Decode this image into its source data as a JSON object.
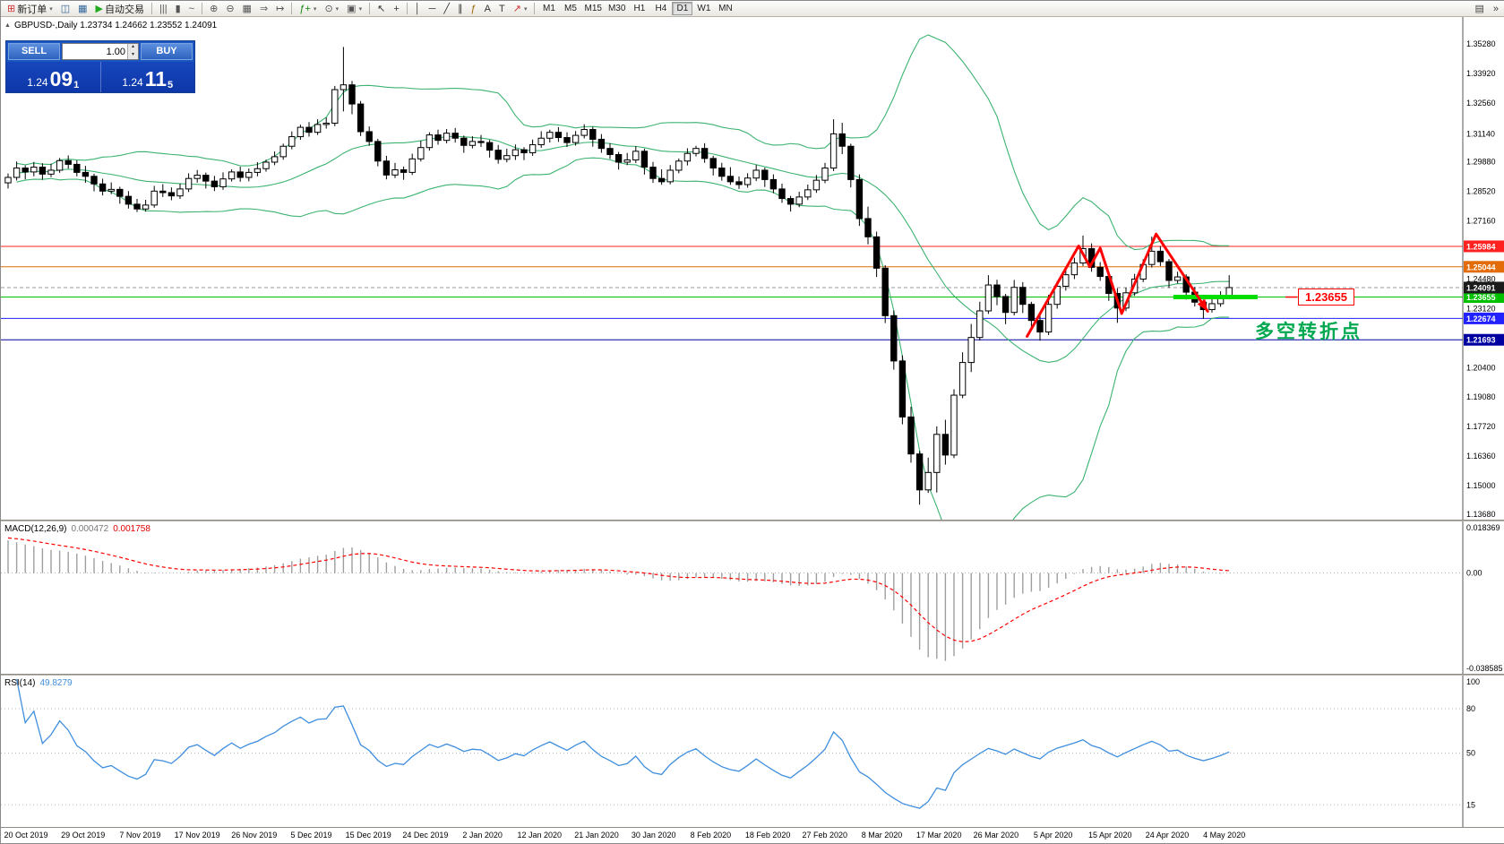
{
  "toolbar": {
    "items": [
      {
        "name": "new-order",
        "glyph": "⊞",
        "glyph_color": "#cc3333",
        "label": "新订单",
        "caret": true
      },
      {
        "name": "charts-toolbar",
        "glyph": "◫",
        "glyph_color": "#336699"
      },
      {
        "name": "profiles",
        "glyph": "▦",
        "glyph_color": "#336699"
      },
      {
        "name": "autotrading",
        "glyph": "▶",
        "glyph_color": "#22aa22",
        "label": "自动交易"
      },
      {
        "sep": true
      },
      {
        "name": "bar-chart-mode",
        "glyph": "|||",
        "glyph_color": "#555555"
      },
      {
        "name": "candlestick-mode",
        "glyph": "▮",
        "glyph_color": "#555555"
      },
      {
        "name": "line-chart-mode",
        "glyph": "~",
        "glyph_color": "#555555"
      },
      {
        "sep": true
      },
      {
        "name": "zoom-in",
        "glyph": "⊕",
        "glyph_color": "#555555"
      },
      {
        "name": "zoom-out",
        "glyph": "⊖",
        "glyph_color": "#555555"
      },
      {
        "name": "tile-windows",
        "glyph": "▦",
        "glyph_color": "#555555"
      },
      {
        "name": "auto-scroll",
        "glyph": "⇒",
        "glyph_color": "#555555"
      },
      {
        "name": "chart-shift",
        "glyph": "↦",
        "glyph_color": "#555555"
      },
      {
        "sep": true
      },
      {
        "name": "indicators",
        "glyph": "ƒ+",
        "glyph_color": "#118811",
        "caret": true
      },
      {
        "name": "periods",
        "glyph": "⊙",
        "glyph_color": "#555555",
        "caret": true
      },
      {
        "name": "templates",
        "glyph": "▣",
        "glyph_color": "#555555",
        "caret": true
      },
      {
        "sep": true
      },
      {
        "name": "cursor",
        "glyph": "↖",
        "glyph_color": "#333333"
      },
      {
        "name": "crosshair",
        "glyph": "+",
        "glyph_color": "#333333"
      },
      {
        "sep": true
      },
      {
        "name": "vertical-line",
        "glyph": "│",
        "glyph_color": "#333333"
      },
      {
        "name": "horizontal-line",
        "glyph": "─",
        "glyph_color": "#333333"
      },
      {
        "name": "trendline",
        "glyph": "╱",
        "glyph_color": "#333333"
      },
      {
        "name": "equidistant-channel",
        "glyph": "∥",
        "glyph_color": "#333333"
      },
      {
        "name": "fibonacci-retracement",
        "glyph": "ƒ",
        "glyph_color": "#996600"
      },
      {
        "name": "text",
        "glyph": "A",
        "glyph_color": "#333333"
      },
      {
        "name": "text-label",
        "glyph": "T",
        "glyph_color": "#333333"
      },
      {
        "name": "arrows",
        "glyph": "↗",
        "glyph_color": "#cc3333",
        "caret": true
      },
      {
        "sep": true
      }
    ],
    "timeframes": [
      "M1",
      "M5",
      "M15",
      "M30",
      "H1",
      "H4",
      "D1",
      "W1",
      "MN"
    ],
    "active_timeframe": "D1",
    "right_items": [
      {
        "name": "window-list",
        "glyph": "▤"
      },
      {
        "name": "toolbar-options",
        "glyph": "»"
      }
    ]
  },
  "chart": {
    "collapse_arrow": "▲",
    "symbol_title": "GBPUSD-,Daily 1.23734 1.24662 1.23552 1.24091"
  },
  "one_click": {
    "sell_label": "SELL",
    "buy_label": "BUY",
    "volume": "1.00",
    "sell_small": "1.24",
    "sell_big": "09",
    "sell_sup": "1",
    "buy_small": "1.24",
    "buy_big": "11",
    "buy_sup": "5"
  },
  "chart_data": {
    "type": "candlestick",
    "symbol": "GBPUSD-",
    "period": "Daily",
    "y_axis": {
      "price_at_top": 1.3528,
      "price_at_bottom": 1.1368,
      "labels": [
        "1.35280",
        "1.33920",
        "1.32560",
        "1.31140",
        "1.29880",
        "1.28520",
        "1.27160",
        "1.24480",
        "1.23120",
        "1.20400",
        "1.19080",
        "1.17720",
        "1.16360",
        "1.15000",
        "1.13680"
      ]
    },
    "x_axis": {
      "labels": [
        "20 Oct 2019",
        "29 Oct 2019",
        "7 Nov 2019",
        "17 Nov 2019",
        "26 Nov 2019",
        "5 Dec 2019",
        "15 Dec 2019",
        "24 Dec 2019",
        "2 Jan 2020",
        "12 Jan 2020",
        "21 Jan 2020",
        "30 Jan 2020",
        "8 Feb 2020",
        "18 Feb 2020",
        "27 Feb 2020",
        "8 Mar 2020",
        "17 Mar 2020",
        "26 Mar 2020",
        "5 Apr 2020",
        "15 Apr 2020",
        "24 Apr 2020",
        "4 May 2020"
      ]
    },
    "ohlc": [
      [
        1.289,
        1.2933,
        1.2864,
        1.2915
      ],
      [
        1.2915,
        1.2988,
        1.2901,
        1.2958
      ],
      [
        1.2958,
        1.297,
        1.2906,
        1.294
      ],
      [
        1.294,
        1.2986,
        1.292,
        1.2962
      ],
      [
        1.2962,
        1.298,
        1.2904,
        1.293
      ],
      [
        1.293,
        1.2978,
        1.2916,
        1.2948
      ],
      [
        1.2948,
        1.3004,
        1.2936,
        1.2992
      ],
      [
        1.2992,
        1.3016,
        1.2955,
        1.2975
      ],
      [
        1.2975,
        1.2993,
        1.292,
        1.2938
      ],
      [
        1.2938,
        1.2968,
        1.289,
        1.292
      ],
      [
        1.292,
        1.2932,
        1.2851,
        1.2885
      ],
      [
        1.2885,
        1.2909,
        1.2832,
        1.2852
      ],
      [
        1.2852,
        1.2892,
        1.2838,
        1.286
      ],
      [
        1.286,
        1.2872,
        1.2794,
        1.2828
      ],
      [
        1.2828,
        1.2852,
        1.2772,
        1.2792
      ],
      [
        1.2792,
        1.2816,
        1.2756,
        1.277
      ],
      [
        1.277,
        1.2812,
        1.2758,
        1.2788
      ],
      [
        1.2788,
        1.2876,
        1.2776,
        1.2852
      ],
      [
        1.2852,
        1.2884,
        1.2825,
        1.2845
      ],
      [
        1.2845,
        1.2869,
        1.281,
        1.283
      ],
      [
        1.283,
        1.2886,
        1.2816,
        1.2862
      ],
      [
        1.2862,
        1.2934,
        1.2848,
        1.291
      ],
      [
        1.291,
        1.2949,
        1.2891,
        1.2925
      ],
      [
        1.2925,
        1.2937,
        1.2864,
        1.2898
      ],
      [
        1.2898,
        1.2922,
        1.2852,
        1.2872
      ],
      [
        1.2872,
        1.2938,
        1.2858,
        1.2908
      ],
      [
        1.2908,
        1.2952,
        1.2896,
        1.294
      ],
      [
        1.294,
        1.2964,
        1.2895,
        1.2915
      ],
      [
        1.2915,
        1.2956,
        1.2897,
        1.2938
      ],
      [
        1.2938,
        1.2985,
        1.292,
        1.2955
      ],
      [
        1.2955,
        1.2997,
        1.2941,
        1.2985
      ],
      [
        1.2985,
        1.3034,
        1.2971,
        1.301
      ],
      [
        1.301,
        1.307,
        1.2996,
        1.3058
      ],
      [
        1.3058,
        1.3126,
        1.3044,
        1.3102
      ],
      [
        1.3102,
        1.3157,
        1.3088,
        1.3145
      ],
      [
        1.3145,
        1.3169,
        1.3102,
        1.3122
      ],
      [
        1.3122,
        1.3182,
        1.311,
        1.3158
      ],
      [
        1.3158,
        1.319,
        1.3139,
        1.3164
      ],
      [
        1.3164,
        1.3335,
        1.315,
        1.3318
      ],
      [
        1.3318,
        1.3514,
        1.3218,
        1.334
      ],
      [
        1.334,
        1.3358,
        1.3205,
        1.3252
      ],
      [
        1.3252,
        1.3266,
        1.3105,
        1.3125
      ],
      [
        1.3125,
        1.3149,
        1.306,
        1.308
      ],
      [
        1.308,
        1.3092,
        1.2966,
        1.299
      ],
      [
        1.299,
        1.3014,
        1.2906,
        1.2926
      ],
      [
        1.2926,
        1.2982,
        1.2912,
        1.295
      ],
      [
        1.295,
        1.2965,
        1.2904,
        1.2938
      ],
      [
        1.2938,
        1.3024,
        1.2926,
        1.3
      ],
      [
        1.3,
        1.3084,
        1.2988,
        1.3052
      ],
      [
        1.3052,
        1.3122,
        1.3038,
        1.311
      ],
      [
        1.311,
        1.3134,
        1.3065,
        1.3085
      ],
      [
        1.3085,
        1.3137,
        1.3071,
        1.3118
      ],
      [
        1.3118,
        1.3142,
        1.3075,
        1.3095
      ],
      [
        1.3095,
        1.3107,
        1.3028,
        1.3062
      ],
      [
        1.3062,
        1.3104,
        1.3048,
        1.308
      ],
      [
        1.308,
        1.311,
        1.3055,
        1.3075
      ],
      [
        1.3075,
        1.3087,
        1.3006,
        1.304
      ],
      [
        1.304,
        1.3064,
        1.2978,
        1.2998
      ],
      [
        1.2998,
        1.3047,
        1.2984,
        1.3015
      ],
      [
        1.3015,
        1.3066,
        1.2995,
        1.3042
      ],
      [
        1.3042,
        1.3054,
        1.2994,
        1.3028
      ],
      [
        1.3028,
        1.3089,
        1.3014,
        1.3065
      ],
      [
        1.3065,
        1.3127,
        1.3051,
        1.3095
      ],
      [
        1.3095,
        1.3134,
        1.3075,
        1.3122
      ],
      [
        1.3122,
        1.3146,
        1.3078,
        1.3098
      ],
      [
        1.3098,
        1.3122,
        1.3055,
        1.3075
      ],
      [
        1.3075,
        1.3128,
        1.3061,
        1.3108
      ],
      [
        1.3108,
        1.3159,
        1.3094,
        1.3135
      ],
      [
        1.3135,
        1.3147,
        1.3056,
        1.309
      ],
      [
        1.309,
        1.3114,
        1.3028,
        1.3048
      ],
      [
        1.3048,
        1.3072,
        1.3,
        1.302
      ],
      [
        1.302,
        1.3032,
        1.2951,
        1.2985
      ],
      [
        1.2985,
        1.3027,
        1.2971,
        1.2995
      ],
      [
        1.2995,
        1.3059,
        1.2981,
        1.3035
      ],
      [
        1.3035,
        1.3047,
        1.2928,
        1.2962
      ],
      [
        1.2962,
        1.2986,
        1.289,
        1.291
      ],
      [
        1.291,
        1.2952,
        1.2881,
        1.2895
      ],
      [
        1.2895,
        1.2972,
        1.2883,
        1.2948
      ],
      [
        1.2948,
        1.3002,
        1.2934,
        1.299
      ],
      [
        1.299,
        1.3049,
        1.297,
        1.3025
      ],
      [
        1.3025,
        1.306,
        1.3011,
        1.3048
      ],
      [
        1.3048,
        1.3072,
        1.2982,
        1.3002
      ],
      [
        1.3002,
        1.3014,
        1.2924,
        1.2958
      ],
      [
        1.2958,
        1.2982,
        1.29,
        1.292
      ],
      [
        1.292,
        1.2962,
        1.2881,
        1.2895
      ],
      [
        1.2895,
        1.2919,
        1.2862,
        1.2882
      ],
      [
        1.2882,
        1.2934,
        1.2868,
        1.2912
      ],
      [
        1.2912,
        1.2972,
        1.2898,
        1.2948
      ],
      [
        1.2948,
        1.296,
        1.2871,
        1.2905
      ],
      [
        1.2905,
        1.2929,
        1.2842,
        1.2862
      ],
      [
        1.2862,
        1.2886,
        1.2798,
        1.2818
      ],
      [
        1.2818,
        1.283,
        1.2758,
        1.2792
      ],
      [
        1.2792,
        1.2849,
        1.2778,
        1.2825
      ],
      [
        1.2825,
        1.2882,
        1.2811,
        1.2858
      ],
      [
        1.2858,
        1.2926,
        1.2844,
        1.2902
      ],
      [
        1.2902,
        1.2982,
        1.2888,
        1.2958
      ],
      [
        1.2958,
        1.3182,
        1.2944,
        1.3115
      ],
      [
        1.3115,
        1.3166,
        1.3022,
        1.3058
      ],
      [
        1.3058,
        1.307,
        1.2869,
        1.2905
      ],
      [
        1.2905,
        1.2929,
        1.2692,
        1.2726
      ],
      [
        1.2726,
        1.2781,
        1.2608,
        1.2642
      ],
      [
        1.2642,
        1.2666,
        1.2458,
        1.2498
      ],
      [
        1.2498,
        1.2512,
        1.2246,
        1.228
      ],
      [
        1.228,
        1.2304,
        1.2032,
        1.2072
      ],
      [
        1.2072,
        1.2098,
        1.1781,
        1.1815
      ],
      [
        1.1815,
        1.1862,
        1.1605,
        1.1645
      ],
      [
        1.1645,
        1.1659,
        1.1412,
        1.148
      ],
      [
        1.148,
        1.1628,
        1.1466,
        1.156
      ],
      [
        1.156,
        1.1772,
        1.1468,
        1.1735
      ],
      [
        1.1735,
        1.1802,
        1.1596,
        1.164
      ],
      [
        1.164,
        1.1942,
        1.1626,
        1.1915
      ],
      [
        1.1915,
        1.2112,
        1.1901,
        1.2065
      ],
      [
        1.2065,
        1.2242,
        1.2021,
        1.218
      ],
      [
        1.218,
        1.2344,
        1.2166,
        1.2302
      ],
      [
        1.2302,
        1.2466,
        1.2288,
        1.2421
      ],
      [
        1.2421,
        1.2445,
        1.2328,
        1.2368
      ],
      [
        1.2368,
        1.238,
        1.2241,
        1.2295
      ],
      [
        1.2295,
        1.2444,
        1.2281,
        1.241
      ],
      [
        1.241,
        1.2434,
        1.2292,
        1.2332
      ],
      [
        1.2332,
        1.2344,
        1.2214,
        1.2258
      ],
      [
        1.2258,
        1.2282,
        1.2165,
        1.2205
      ],
      [
        1.2205,
        1.2376,
        1.2191,
        1.2332
      ],
      [
        1.2332,
        1.2439,
        1.2312,
        1.2415
      ],
      [
        1.2415,
        1.2492,
        1.2395,
        1.2468
      ],
      [
        1.2468,
        1.2546,
        1.2448,
        1.2522
      ],
      [
        1.2522,
        1.2648,
        1.2508,
        1.2588
      ],
      [
        1.2588,
        1.2612,
        1.2482,
        1.2502
      ],
      [
        1.2502,
        1.2526,
        1.244,
        1.246
      ],
      [
        1.246,
        1.2472,
        1.2348,
        1.2382
      ],
      [
        1.2382,
        1.2406,
        1.2247,
        1.2315
      ],
      [
        1.2315,
        1.2409,
        1.2301,
        1.2385
      ],
      [
        1.2385,
        1.2472,
        1.2371,
        1.2448
      ],
      [
        1.2448,
        1.2539,
        1.2434,
        1.2515
      ],
      [
        1.2515,
        1.2643,
        1.2501,
        1.2576
      ],
      [
        1.2576,
        1.26,
        1.2508,
        1.2528
      ],
      [
        1.2528,
        1.254,
        1.2408,
        1.2442
      ],
      [
        1.2442,
        1.2482,
        1.2428,
        1.2458
      ],
      [
        1.2458,
        1.247,
        1.2354,
        1.2388
      ],
      [
        1.2388,
        1.2412,
        1.2322,
        1.2342
      ],
      [
        1.2342,
        1.2354,
        1.2266,
        1.2308
      ],
      [
        1.2308,
        1.2359,
        1.2294,
        1.2335
      ],
      [
        1.2335,
        1.2392,
        1.2321,
        1.2368
      ],
      [
        1.2373,
        1.2466,
        1.2355,
        1.2409
      ]
    ],
    "hlines": [
      {
        "price": 1.25984,
        "label": "1.25984",
        "color": "#ff2020"
      },
      {
        "price": 1.25044,
        "label": "1.25044",
        "color": "#e36c09"
      },
      {
        "price": 1.23655,
        "label": "1.23655",
        "color": "#00c000"
      },
      {
        "price": 1.22674,
        "label": "1.22674",
        "color": "#2222ff"
      },
      {
        "price": 1.21693,
        "label": "1.21693",
        "color": "#0000a0"
      }
    ],
    "current_price": {
      "value": 1.24091,
      "label": "1.24091",
      "color": "#1a1a1a"
    },
    "bollinger": {
      "period": 20,
      "deviation": 2,
      "color": "#3cb371"
    },
    "annotations": {
      "zigzag": {
        "color": "#ff0000",
        "points": [
          [
            118.5,
            1.2185
          ],
          [
            124.5,
            1.26
          ],
          [
            125.8,
            1.2505
          ],
          [
            127.0,
            1.259
          ],
          [
            129.5,
            1.229
          ],
          [
            133.5,
            1.2655
          ],
          [
            139.5,
            1.23
          ]
        ]
      },
      "support_segment": {
        "from": 135.5,
        "to": 145.3,
        "price": 1.23655,
        "color": "#00dd00"
      },
      "price_tag": {
        "text": "1.23655",
        "price": 1.23655,
        "bar": 150,
        "color": "#ff0000"
      },
      "cn_note": {
        "text": "多空转折点",
        "price": 1.2215,
        "bar": 145,
        "color": "#00a84f"
      }
    },
    "macd": {
      "label": "MACD(12,26,9)",
      "v1": "0.000472",
      "v2": "0.001758",
      "scale_top": "0.018369",
      "scale_zero": "0.00",
      "scale_bottom": "-0.038585"
    },
    "rsi": {
      "label": "RSI(14)",
      "value": "49.8279",
      "levels": [
        "100",
        "80",
        "50",
        "15"
      ],
      "color": "#3f8ede"
    }
  }
}
